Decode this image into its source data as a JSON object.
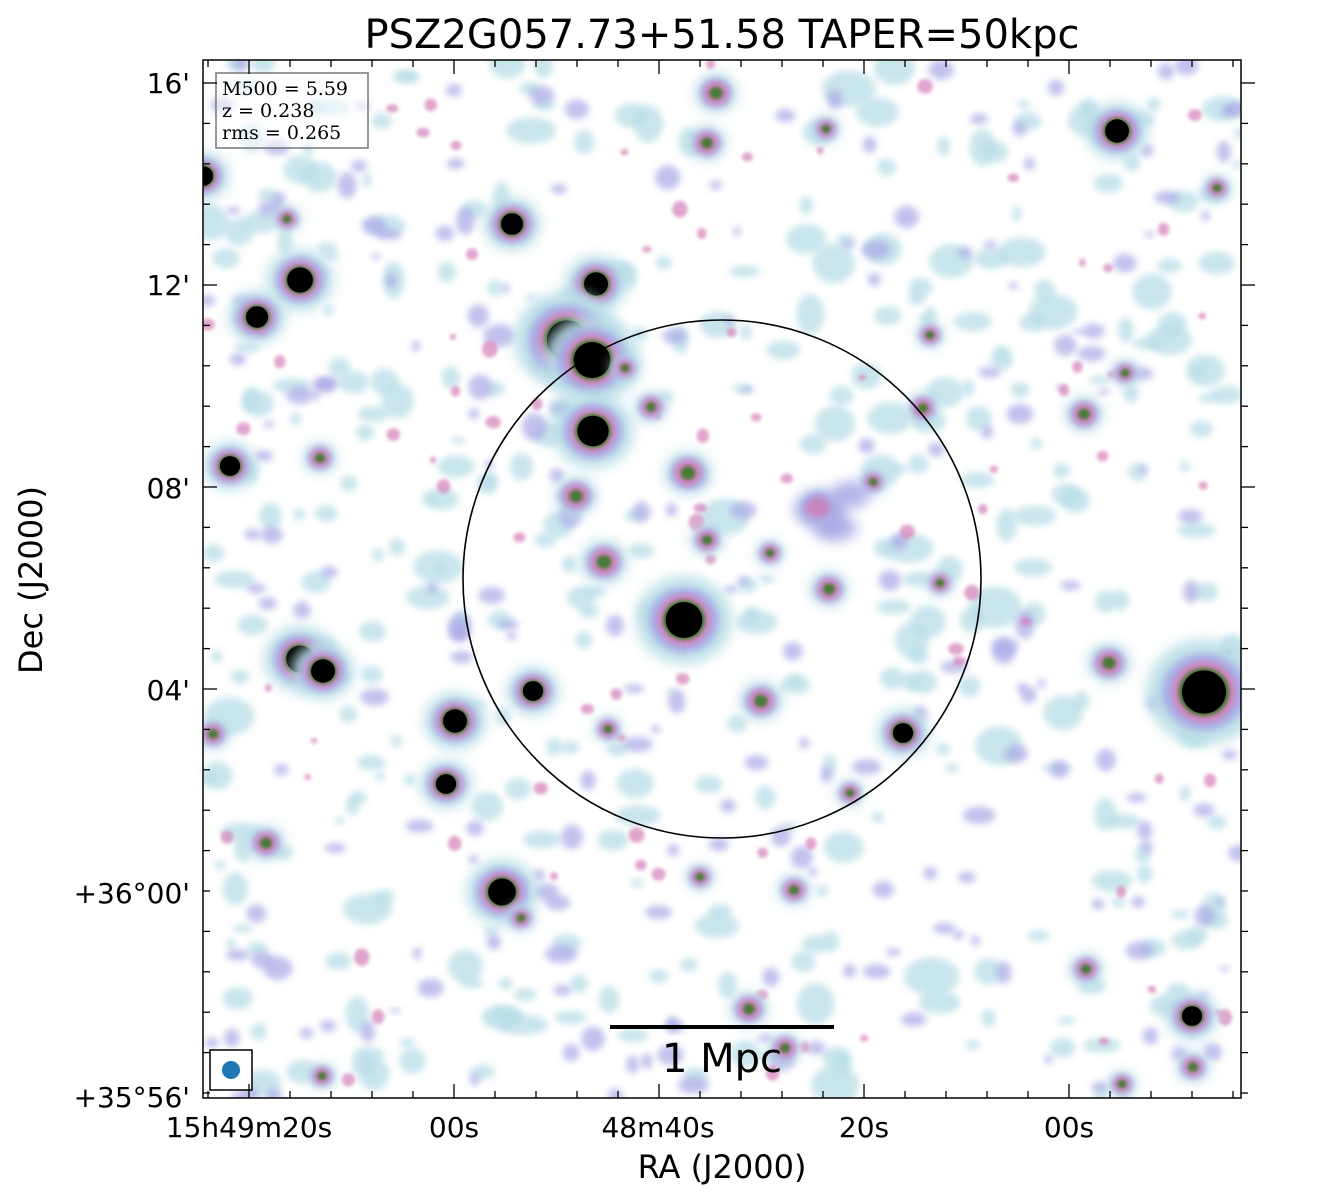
{
  "title": "PSZ2G057.73+51.58 TAPER=50kpc",
  "info_box": {
    "lines": [
      "M500 = 5.59",
      "z = 0.238",
      "rms = 0.265"
    ]
  },
  "axes": {
    "xlabel": "RA (J2000)",
    "ylabel": "Dec (J2000)",
    "x_ticks": [
      "15h49m20s",
      "00s",
      "48m40s",
      "20s",
      "00s"
    ],
    "y_ticks": [
      "16'",
      "12'",
      "08'",
      "04'",
      "+36°00'",
      "+35°56'"
    ]
  },
  "scale_bar": {
    "label": "1 Mpc"
  },
  "colors": {
    "faint": "#b8dde6",
    "medium": "#a9a8e6",
    "bright": "#d47fb8",
    "core": "#3a7a2a",
    "saturated": "#000000",
    "beam": "#1f77b4"
  },
  "beam_icon": "beam-ellipse"
}
